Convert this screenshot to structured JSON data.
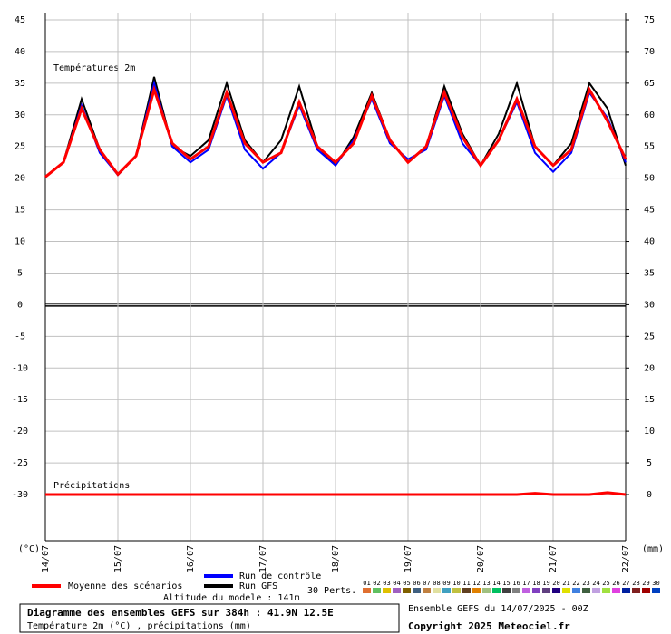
{
  "chart_data": {
    "type": "line",
    "title": "Diagramme des ensembles GEFS sur 384h : 41.9N 12.5E",
    "subtitle": "Température 2m (°C) , précipitations (mm)",
    "run_info": "Ensemble GEFS du 14/07/2025 - 00Z",
    "copyright": "Copyright 2025 Meteociel.fr",
    "altitude": "Altitude du modele : 141m",
    "temp_label": "Températures 2m",
    "precip_label": "Précipitations",
    "y_unit": "(°C)",
    "y2_unit": "(mm)",
    "perts_label": "30 Perts.",
    "categories": [
      "14/07",
      null,
      null,
      null,
      "15/07",
      null,
      null,
      null,
      "16/07",
      null,
      null,
      null,
      "17/07",
      null,
      null,
      null,
      "18/07",
      null,
      null,
      null,
      "19/07",
      null,
      null,
      null,
      "20/07",
      null,
      null,
      null,
      "21/07",
      null,
      null,
      null,
      "22/07"
    ],
    "series": [
      {
        "name": "Moyenne des scénarios",
        "color": "#ff0000",
        "values": [
          20.2,
          22.5,
          31,
          24.5,
          20.6,
          23.5,
          34,
          25.5,
          23,
          25,
          33.5,
          25.5,
          22.5,
          24,
          32,
          25,
          22.5,
          25.5,
          33,
          26,
          22.5,
          25,
          33.5,
          26.5,
          22,
          26,
          32.5,
          25,
          22,
          24.5,
          34,
          29,
          23
        ]
      },
      {
        "name": "Run de contrôle",
        "color": "#0000ff",
        "values": [
          20.2,
          22.5,
          31.5,
          24,
          20.5,
          23.5,
          35,
          25,
          22.5,
          24.5,
          33,
          24.5,
          21.5,
          24,
          31.5,
          24.5,
          22,
          26,
          32.5,
          25.5,
          23,
          24.5,
          33,
          25.5,
          22,
          26,
          32,
          24,
          21,
          24,
          33.5,
          29.5,
          22.5
        ]
      },
      {
        "name": "Run GFS",
        "color": "#000000",
        "values": [
          20.2,
          22.5,
          32.5,
          24.5,
          20.5,
          23.5,
          36,
          25,
          23.5,
          26,
          35,
          26,
          22.5,
          26,
          34.5,
          25,
          22,
          26.5,
          33.5,
          26,
          22.5,
          25,
          34.5,
          27,
          22,
          27,
          35,
          25,
          22,
          25.5,
          35,
          31,
          22
        ]
      }
    ],
    "precipitation": {
      "axis": "y2",
      "color": "#ff0000",
      "values": [
        0,
        0,
        0,
        0,
        0,
        0,
        0,
        0,
        0,
        0,
        0,
        0,
        0,
        0,
        0,
        0,
        0,
        0,
        0,
        0,
        0,
        0,
        0,
        0,
        0,
        0,
        0,
        0.2,
        0,
        0,
        0,
        0.3,
        0
      ]
    },
    "perturbations": [
      {
        "name": "01",
        "color": "#e07030"
      },
      {
        "name": "02",
        "color": "#60c060"
      },
      {
        "name": "03",
        "color": "#e0c000"
      },
      {
        "name": "04",
        "color": "#a060c0"
      },
      {
        "name": "05",
        "color": "#806000"
      },
      {
        "name": "06",
        "color": "#406080"
      },
      {
        "name": "07",
        "color": "#c08040"
      },
      {
        "name": "08",
        "color": "#e0e0a0"
      },
      {
        "name": "09",
        "color": "#40a0c0"
      },
      {
        "name": "10",
        "color": "#c0c040"
      },
      {
        "name": "11",
        "color": "#604020"
      },
      {
        "name": "12",
        "color": "#e08000"
      },
      {
        "name": "13",
        "color": "#a0c080"
      },
      {
        "name": "14",
        "color": "#00c060"
      },
      {
        "name": "15",
        "color": "#404040"
      },
      {
        "name": "16",
        "color": "#808080"
      },
      {
        "name": "17",
        "color": "#c060e0"
      },
      {
        "name": "18",
        "color": "#8040c0"
      },
      {
        "name": "19",
        "color": "#604080"
      },
      {
        "name": "20",
        "color": "#200080"
      },
      {
        "name": "21",
        "color": "#e0e000"
      },
      {
        "name": "22",
        "color": "#4080e0"
      },
      {
        "name": "23",
        "color": "#406040"
      },
      {
        "name": "24",
        "color": "#c0a0e0"
      },
      {
        "name": "25",
        "color": "#a0e040"
      },
      {
        "name": "26",
        "color": "#e040e0"
      },
      {
        "name": "27",
        "color": "#0020a0"
      },
      {
        "name": "28",
        "color": "#802020"
      },
      {
        "name": "29",
        "color": "#a00000"
      },
      {
        "name": "30",
        "color": "#0040c0"
      }
    ],
    "ylim": [
      -37.3,
      45
    ],
    "yticks": [
      -30,
      -25,
      -20,
      -15,
      -10,
      -5,
      0,
      5,
      10,
      15,
      20,
      25,
      30,
      35,
      40,
      45
    ],
    "y2lim": [
      -7.3,
      75
    ],
    "y2ticks": [
      0,
      5,
      10,
      15,
      20,
      25,
      30,
      35,
      40,
      45,
      50,
      55,
      60,
      65,
      70,
      75
    ],
    "grid": true,
    "zero_line": true
  }
}
